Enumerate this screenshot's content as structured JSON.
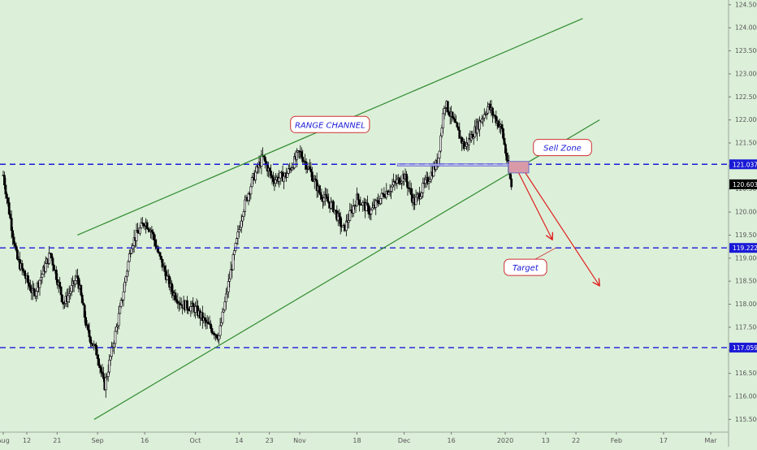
{
  "chart_data": {
    "type": "candlestick",
    "title": "",
    "y_axis": {
      "min": 115.4,
      "max": 124.55,
      "ticks": [
        "124.500",
        "124.000",
        "123.500",
        "123.000",
        "122.500",
        "122.000",
        "121.500",
        "121.000",
        "120.500",
        "120.000",
        "119.500",
        "119.000",
        "118.500",
        "118.000",
        "117.500",
        "117.000",
        "116.500",
        "116.000",
        "115.500"
      ]
    },
    "x_axis": {
      "ticks": [
        {
          "label": "Aug",
          "date": "2019-08-05"
        },
        {
          "label": "12",
          "date": "2019-08-12"
        },
        {
          "label": "21",
          "date": "2019-08-21"
        },
        {
          "label": "Sep",
          "date": "2019-09-02"
        },
        {
          "label": "16",
          "date": "2019-09-16"
        },
        {
          "label": "Oct",
          "date": "2019-10-01"
        },
        {
          "label": "14",
          "date": "2019-10-14"
        },
        {
          "label": "23",
          "date": "2019-10-23"
        },
        {
          "label": "Nov",
          "date": "2019-11-01"
        },
        {
          "label": "18",
          "date": "2019-11-18"
        },
        {
          "label": "Dec",
          "date": "2019-12-02"
        },
        {
          "label": "16",
          "date": "2019-12-16"
        },
        {
          "label": "2020",
          "date": "2020-01-01"
        },
        {
          "label": "13",
          "date": "2020-01-13"
        },
        {
          "label": "22",
          "date": "2020-01-22"
        },
        {
          "label": "Feb",
          "date": "2020-02-03"
        },
        {
          "label": "17",
          "date": "2020-02-17"
        },
        {
          "label": "Mar",
          "date": "2020-03-02"
        }
      ]
    },
    "price_path": [
      [
        "2019-08-05",
        120.8
      ],
      [
        "2019-08-09",
        119.0
      ],
      [
        "2019-08-14",
        118.2
      ],
      [
        "2019-08-19",
        119.1
      ],
      [
        "2019-08-23",
        118.0
      ],
      [
        "2019-08-27",
        118.6
      ],
      [
        "2019-08-30",
        117.4
      ],
      [
        "2019-09-02",
        116.9
      ],
      [
        "2019-09-04",
        116.2
      ],
      [
        "2019-09-06",
        116.9
      ],
      [
        "2019-09-09",
        118.0
      ],
      [
        "2019-09-12",
        119.3
      ],
      [
        "2019-09-16",
        119.8
      ],
      [
        "2019-09-18",
        119.6
      ],
      [
        "2019-09-20",
        119.1
      ],
      [
        "2019-09-24",
        118.3
      ],
      [
        "2019-09-27",
        118.0
      ],
      [
        "2019-10-01",
        117.9
      ],
      [
        "2019-10-04",
        117.6
      ],
      [
        "2019-10-08",
        117.3
      ],
      [
        "2019-10-11",
        118.5
      ],
      [
        "2019-10-15",
        120.0
      ],
      [
        "2019-10-18",
        120.7
      ],
      [
        "2019-10-21",
        121.2
      ],
      [
        "2019-10-24",
        120.7
      ],
      [
        "2019-10-28",
        120.8
      ],
      [
        "2019-11-01",
        121.3
      ],
      [
        "2019-11-04",
        120.9
      ],
      [
        "2019-11-07",
        120.4
      ],
      [
        "2019-11-11",
        120.1
      ],
      [
        "2019-11-14",
        119.6
      ],
      [
        "2019-11-18",
        120.3
      ],
      [
        "2019-11-22",
        120.0
      ],
      [
        "2019-11-26",
        120.4
      ],
      [
        "2019-12-02",
        120.8
      ],
      [
        "2019-12-05",
        120.2
      ],
      [
        "2019-12-09",
        120.7
      ],
      [
        "2019-12-12",
        121.1
      ],
      [
        "2019-12-14",
        122.4
      ],
      [
        "2019-12-17",
        121.9
      ],
      [
        "2019-12-20",
        121.4
      ],
      [
        "2019-12-24",
        121.9
      ],
      [
        "2019-12-27",
        122.3
      ],
      [
        "2019-12-31",
        121.8
      ],
      [
        "2020-01-02",
        120.9
      ],
      [
        "2020-01-03",
        120.5
      ]
    ],
    "last_price": "120.603",
    "horizontal_levels": [
      {
        "price": 121.037,
        "label": "121.037"
      },
      {
        "price": 119.222,
        "label": "119.222"
      },
      {
        "price": 117.059,
        "label": "117.059"
      }
    ],
    "channel_upper": {
      "start": [
        "2019-08-27",
        119.5
      ],
      "end": [
        "2020-01-24",
        124.2
      ]
    },
    "channel_lower": {
      "start": [
        "2019-09-01",
        115.5
      ],
      "end": [
        "2020-01-29",
        122.0
      ]
    },
    "sell_zone": {
      "from": "2020-01-02",
      "to": "2020-01-08",
      "low": 120.85,
      "high": 121.1
    },
    "resistance_band": {
      "from": "2019-11-30",
      "to": "2020-01-06",
      "low": 121.0,
      "high": 121.05
    },
    "arrows": [
      {
        "from": [
          "2020-01-05",
          120.85
        ],
        "to": [
          "2020-01-15",
          119.4
        ]
      },
      {
        "from": [
          "2020-01-07",
          120.85
        ],
        "to": [
          "2020-01-29",
          118.4
        ]
      }
    ],
    "annotations": [
      {
        "name": "range-channel-label",
        "text": "RANGE CHANNEL",
        "at": [
          "2019-11-10",
          121.9
        ]
      },
      {
        "name": "sell-zone-label",
        "text": "Sell Zone",
        "at": [
          "2020-01-18",
          121.4
        ]
      },
      {
        "name": "target-label",
        "text": "Target",
        "at": [
          "2020-01-07",
          118.8
        ]
      }
    ],
    "colors": {
      "background": "#dcefd9",
      "candle": "#000000",
      "channel": "#2e8b2e",
      "level": "#1a1ad6",
      "arrow": "#e02020",
      "annotation_text": "#1a1ad6",
      "annotation_border": "#d03030",
      "sell_zone_fill": "#d99aa8",
      "level_badge": "#1a1ad6",
      "last_price_badge": "#000000"
    }
  }
}
